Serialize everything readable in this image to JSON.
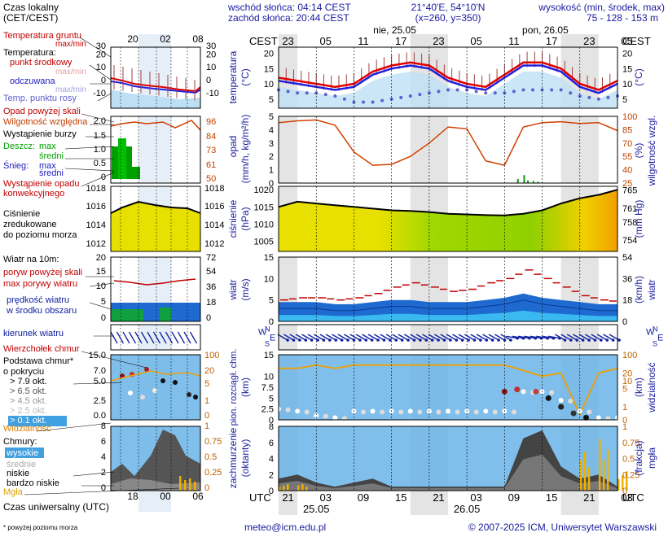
{
  "header": {
    "sunrise": "wschód słońca: 04:14 CEST",
    "sunset": "zachód słońca: 20:44 CEST",
    "coords": "21°40'E, 54°10'N",
    "grid": "(x=260,  y=350)",
    "elev_title": "wysokość (min, środek, max)",
    "elev_values": "75 - 128 - 153 m"
  },
  "legend": {
    "local_time": "Czas lokalny",
    "local_time_sub": "(CET/CEST)",
    "ground_temp": "Temperatura gruntu",
    "ground_temp_sub": "max/min",
    "temperature": "Temperatura:",
    "mid_point": "punkt środkowy",
    "max_min": "max/min",
    "perceived": "odczuwana",
    "max_min2": "max/min",
    "dew_point": "Temp. punktu rosy",
    "precip_above": "Opad powyżej skali",
    "humidity": "Wilgotność względna",
    "storm": "Wystąpienie burzy",
    "rain": "Deszcz:",
    "snow": "Śnieg:",
    "max": "max",
    "mid": "średni",
    "conv": "Wystąpienie opadu",
    "conv2": "konwekcyjnego",
    "pressure1": "Ciśnienie",
    "pressure2": "zredukowane",
    "pressure3": "do poziomu morza",
    "wind10": "Wiatr na 10m:",
    "gust_above": "poryw powyżej skali",
    "gust_max": "max porywy wiatru",
    "wind_speed": "prędkość wiatru",
    "wind_speed2": "w środku obszaru",
    "wind_dir": "kierunek wiatru",
    "cloud_tops": "Wierzchołek chmur",
    "cloud_base1": "Podstawa chmur*",
    "cloud_base2": "o pokryciu",
    "okt1": "> 7.9 okt.",
    "okt2": "> 6.5 okt.",
    "okt3": "> 4.5 okt.",
    "okt4": "> 2.5 okt.",
    "okt5": "> 0.1 okt.",
    "visibility": "Widzialność",
    "clouds": "Chmury:",
    "high": "wysokie",
    "middle": "średnie",
    "low": "niskie",
    "very_low": "bardzo niskie",
    "fog": "Mgła",
    "utc_label": "Czas uniwersalny (UTC)",
    "footnote": "* powyżej poziomu morza"
  },
  "footer": {
    "email": "meteo@icm.edu.pl",
    "copyright": "© 2007-2025 ICM, Uniwersytet Warszawski"
  },
  "axis": {
    "cest": "CEST",
    "utc": "UTC",
    "day1": "nie, 25.05",
    "day2": "pon, 26.05",
    "date1": "25.05",
    "date2": "26.05",
    "top_hours": [
      "23",
      "05",
      "11",
      "17",
      "23",
      "05",
      "11",
      "17",
      "23",
      "05"
    ],
    "bottom_hours": [
      "21",
      "03",
      "09",
      "15",
      "21",
      "03",
      "09",
      "15",
      "21",
      "03"
    ],
    "legend_top_hours": [
      "20",
      "02",
      "08"
    ],
    "legend_bottom_hours": [
      "18",
      "00",
      "06"
    ]
  },
  "panel_labels": {
    "temp": "temperatura",
    "temp_unit": "(°C)",
    "precip": "opad",
    "precip_unit": "(mm/h, kg/m²/h)",
    "rh": "wilgotność wzgl.",
    "rh_unit": "(%)",
    "press": "ciśnienie",
    "press_unit": "(hPa)",
    "press_unit2": "(mm Hg)",
    "wind": "wiatr",
    "wind_unit": "(m/s)",
    "wind_unit2": "(km/h)",
    "dir_w": "W",
    "dir_n": "N",
    "dir_s": "S",
    "dir_e": "E",
    "clouds_left1": "pion. rozciągł. chm.",
    "clouds_left2": "(km)",
    "vis": "widzialność",
    "vis_unit": "(km)",
    "cover1": "zachmurzenie",
    "cover2": "(oktanty)",
    "fog1": "mgła",
    "fog2": "(frakcja)"
  },
  "colors": {
    "temp_mid": "#e00000",
    "perceived": "#2020e0",
    "dew": "#6060d0",
    "rh": "#d04000",
    "rain": "#00a000",
    "pressure_fill": "#e8e000",
    "wind_fill": "#1060c0",
    "gust": "#c00000",
    "cloud_bg": "#6ab4e8",
    "visibility": "#f0a000",
    "fog": "#f0b000",
    "night_band": "#e4e4e4"
  },
  "chart_data": [
    {
      "type": "line",
      "title": "temperatura",
      "ylabel": "(°C)",
      "ylim": [
        2,
        22
      ],
      "yticks": [
        5,
        10,
        15,
        20
      ],
      "x_hours": [
        0,
        3,
        6,
        9,
        12,
        15,
        18,
        21,
        24,
        27,
        30,
        33,
        36,
        39,
        42,
        45,
        48,
        51,
        54
      ],
      "series": [
        {
          "name": "punkt środkowy",
          "values": [
            12,
            11,
            10,
            9,
            10,
            14,
            16,
            17,
            16,
            12,
            10,
            9,
            13,
            17,
            17,
            15,
            10,
            8,
            11
          ]
        },
        {
          "name": "odczuwana",
          "values": [
            11,
            10,
            9,
            8,
            9,
            13,
            15,
            16,
            15,
            11,
            9,
            8,
            12,
            16,
            16,
            14,
            9,
            7,
            10
          ]
        },
        {
          "name": "Temp. punktu rosy",
          "values": [
            8,
            7,
            7,
            6,
            4,
            4,
            5,
            6,
            7,
            8,
            8,
            7,
            7,
            8,
            8,
            8,
            6,
            5,
            6
          ]
        }
      ]
    },
    {
      "type": "line",
      "title": "opad / wilgotność wzgl.",
      "ylim": [
        0,
        5
      ],
      "y2lim": [
        25,
        100
      ],
      "yticks": [
        0,
        1,
        2,
        3,
        4,
        5
      ],
      "y2ticks": [
        25,
        40,
        55,
        70,
        85,
        100
      ],
      "x_hours": [
        0,
        3,
        6,
        9,
        12,
        15,
        18,
        21,
        24,
        27,
        30,
        33,
        36,
        39,
        42,
        45,
        48,
        51,
        54
      ],
      "series": [
        {
          "name": "wilgotność względna",
          "values": [
            93,
            95,
            96,
            90,
            60,
            45,
            46,
            55,
            70,
            88,
            86,
            50,
            45,
            88,
            93,
            94,
            92,
            93,
            84
          ]
        },
        {
          "name": "opad",
          "values": [
            0,
            0,
            0,
            0,
            0,
            0,
            0,
            0,
            0,
            0,
            0,
            0,
            0,
            0.4,
            0.1,
            0,
            0,
            0,
            0
          ]
        }
      ]
    },
    {
      "type": "area",
      "title": "ciśnienie",
      "ylabel": "(hPa)",
      "ylim": [
        1002,
        1021
      ],
      "yticks": [
        1005,
        1010,
        1015,
        1020
      ],
      "y2ticks": [
        754,
        758,
        761,
        765
      ],
      "x_hours": [
        0,
        3,
        6,
        9,
        12,
        15,
        18,
        21,
        24,
        27,
        30,
        33,
        36,
        39,
        42,
        45,
        48,
        51,
        54
      ],
      "values": [
        1015,
        1016.5,
        1016,
        1015.5,
        1015,
        1014.5,
        1014,
        1013.8,
        1013.5,
        1013,
        1012.8,
        1012.6,
        1012.5,
        1013,
        1014,
        1016,
        1017.5,
        1018.5,
        1020
      ]
    },
    {
      "type": "area",
      "title": "wiatr",
      "ylabel": "(m/s)",
      "ylim": [
        0,
        15
      ],
      "yticks": [
        0,
        5,
        10,
        15
      ],
      "y2ticks": [
        0,
        18,
        36,
        54
      ],
      "x_hours": [
        0,
        3,
        6,
        9,
        12,
        15,
        18,
        21,
        24,
        27,
        30,
        33,
        36,
        39,
        42,
        45,
        48,
        51,
        54
      ],
      "series": [
        {
          "name": "prędkość wiatru",
          "values": [
            3,
            3,
            3,
            2.5,
            2.5,
            3,
            3.5,
            3.5,
            3,
            3,
            3,
            3.5,
            4,
            5,
            4,
            3.5,
            3,
            2.5,
            2.5
          ]
        },
        {
          "name": "max porywy wiatru",
          "values": [
            5,
            5.5,
            5.5,
            5,
            5.5,
            6.5,
            8,
            9,
            8,
            7,
            7.5,
            9,
            10,
            12,
            10,
            8,
            6,
            5,
            4.5
          ]
        }
      ]
    },
    {
      "type": "scatter",
      "title": "pion. rozciągł. chm. / widzialność",
      "ylim": [
        0,
        15
      ],
      "yticks": [
        0,
        2.5,
        5,
        7.5,
        10,
        15
      ],
      "y2ticks": [
        0,
        1,
        5,
        10,
        20,
        100
      ],
      "x_hours": [
        0,
        3,
        6,
        9,
        12,
        15,
        18,
        21,
        24,
        27,
        30,
        33,
        36,
        39,
        42,
        45,
        48,
        51,
        54
      ],
      "series": [
        {
          "name": "Widzialność",
          "values": [
            30,
            30,
            40,
            30,
            40,
            40,
            40,
            40,
            40,
            40,
            40,
            40,
            40,
            25,
            15,
            20,
            0.5,
            20,
            30
          ]
        },
        {
          "name": "Podstawa chmur",
          "values": [
            2.5,
            2,
            1,
            0.5,
            2,
            2,
            2,
            2,
            2,
            2,
            2,
            2,
            2,
            6.5,
            6.5,
            4.5,
            2,
            0.5,
            0.5
          ]
        }
      ]
    },
    {
      "type": "area",
      "title": "zachmurzenie / mgła",
      "ylabel": "(oktanty)",
      "ylim": [
        0,
        8
      ],
      "yticks": [
        0,
        2,
        4,
        6,
        8
      ],
      "y2ticks": [
        0,
        0.25,
        0.5,
        0.75,
        1
      ],
      "x_hours": [
        0,
        3,
        6,
        9,
        12,
        15,
        18,
        21,
        24,
        27,
        30,
        33,
        36,
        39,
        42,
        45,
        48,
        51,
        54
      ],
      "series": [
        {
          "name": "niskie",
          "values": [
            1.5,
            2,
            1,
            0.5,
            1,
            1.5,
            0.5,
            0.5,
            0.5,
            0.5,
            0.5,
            0.5,
            0.5,
            6.5,
            7.5,
            3,
            1.5,
            2,
            0.5
          ]
        },
        {
          "name": "Mgła",
          "values": [
            0.1,
            0.1,
            0,
            0,
            0,
            0,
            0,
            0,
            0,
            0,
            0,
            0,
            0,
            0,
            0,
            0,
            0.6,
            0.8,
            0.3
          ]
        }
      ]
    }
  ]
}
